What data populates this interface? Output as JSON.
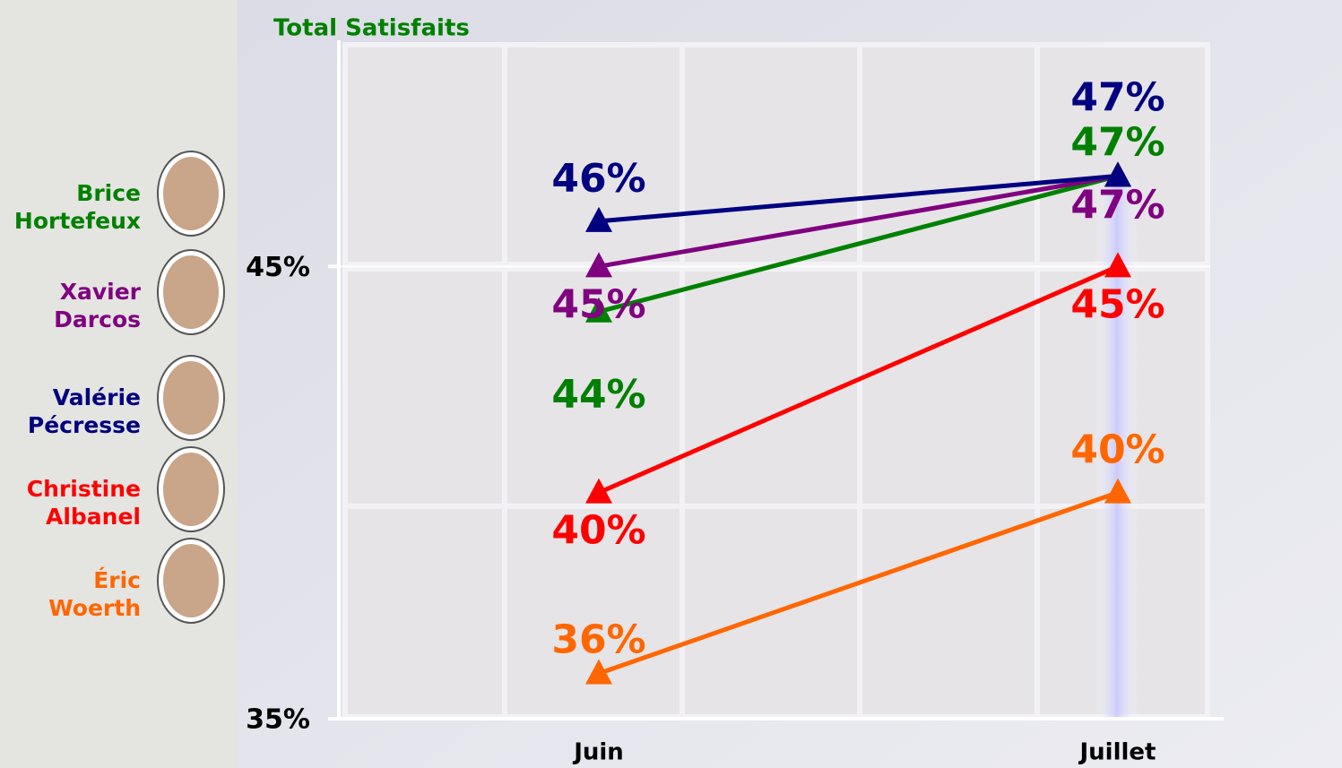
{
  "chart_data": {
    "type": "line",
    "title": "Total Satisfaits",
    "title_color": "#008000",
    "categories": [
      "Juin",
      "Juillet"
    ],
    "series": [
      {
        "name": "Brice Hortefeux",
        "color": "#008000",
        "values": [
          44,
          47
        ],
        "value_labels": [
          "44%",
          "47%"
        ]
      },
      {
        "name": "Xavier Darcos",
        "color": "#800080",
        "values": [
          45,
          47
        ],
        "value_labels": [
          "45%",
          "47%"
        ]
      },
      {
        "name": "Valérie Pécresse",
        "color": "#000080",
        "values": [
          46,
          47
        ],
        "value_labels": [
          "46%",
          "47%"
        ]
      },
      {
        "name": "Christine Albanel",
        "color": "#ff0000",
        "values": [
          40,
          45
        ],
        "value_labels": [
          "40%",
          "45%"
        ]
      },
      {
        "name": "Éric Woerth",
        "color": "#ff6600",
        "values": [
          36,
          40
        ],
        "value_labels": [
          "36%",
          "40%"
        ]
      }
    ],
    "ylim": [
      35,
      50
    ],
    "yticks": [
      {
        "value": 35,
        "label": "35%"
      },
      {
        "value": 45,
        "label": "45%"
      }
    ],
    "grid": true
  }
}
